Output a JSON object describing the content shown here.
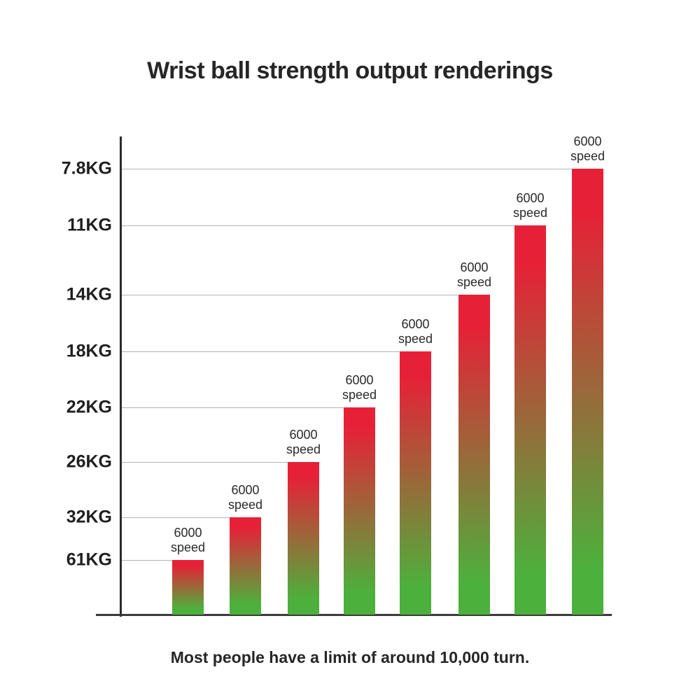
{
  "title": "Wrist ball strength output renderings",
  "caption": "Most people have a limit of around 10,000 turn.",
  "chart_data": {
    "type": "bar",
    "title": "Wrist ball strength output renderings",
    "categories": [
      "6000 speed",
      "6000 speed",
      "6000 speed",
      "6000 speed",
      "6000 speed",
      "6000 speed",
      "6000 speed",
      "6000 speed"
    ],
    "values": [
      7.8,
      11,
      14,
      18,
      22,
      26,
      32,
      61
    ],
    "unit": "KG",
    "y_tick_labels": [
      "7.8KG",
      "11KG",
      "14KG",
      "18KG",
      "22KG",
      "26KG",
      "32KG",
      "61KG"
    ],
    "bar_label_lines": [
      "6000",
      "speed"
    ],
    "annotation": "Most people have a limit of around 10,000 turn.",
    "axis": {
      "y_scale": "non-linear",
      "grid": true,
      "legend": false,
      "xlabel": "",
      "ylabel": ""
    },
    "colors": {
      "bar_gradient_top": "#e62137",
      "bar_gradient_bottom": "#4cb13c",
      "axis_line": "#2b2b2b",
      "gridline": "#b3b3b3",
      "text": "#1f1f1f"
    }
  }
}
